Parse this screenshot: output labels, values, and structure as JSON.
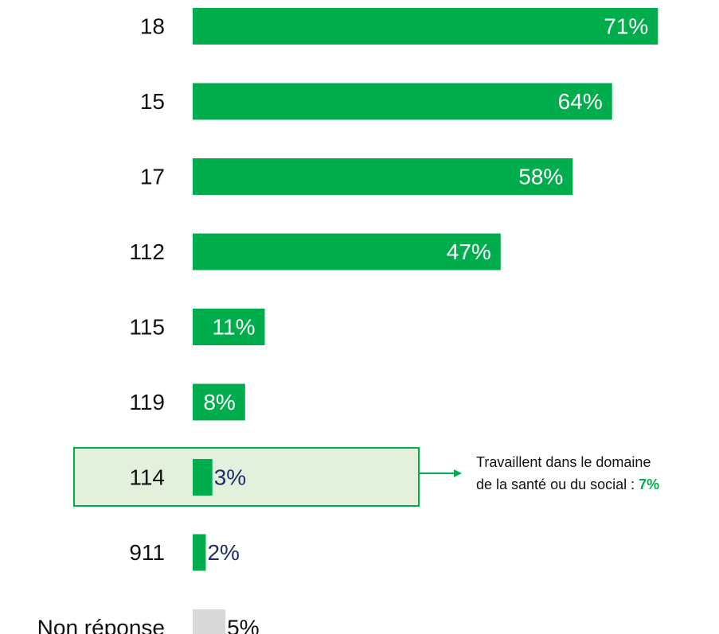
{
  "chart_data": {
    "type": "bar",
    "orientation": "horizontal",
    "categories": [
      "18",
      "15",
      "17",
      "112",
      "115",
      "119",
      "114",
      "911",
      "Non réponse"
    ],
    "values": [
      71,
      64,
      58,
      47,
      11,
      8,
      3,
      2,
      5
    ],
    "value_labels": [
      "71%",
      "64%",
      "58%",
      "47%",
      "11%",
      "8%",
      "3%",
      "2%",
      "5%"
    ],
    "xlim": [
      0,
      100
    ],
    "grid": false,
    "legend": "none",
    "highlighted_category": "114"
  },
  "annotation": {
    "line1": "Travaillent dans le domaine",
    "line2_prefix": "de la santé ou du social : ",
    "line2_value": "7%"
  },
  "colors": {
    "bar": "#00ad4d",
    "bar_nonresponse": "#d9d9d9",
    "label_inside": "#ffffff",
    "label_outside": "#1f2d6b",
    "label_nonresponse": "#111111",
    "highlight_fill": "#e3f0db",
    "highlight_stroke": "#00ad4d",
    "annotation_value": "#00ad4d"
  }
}
